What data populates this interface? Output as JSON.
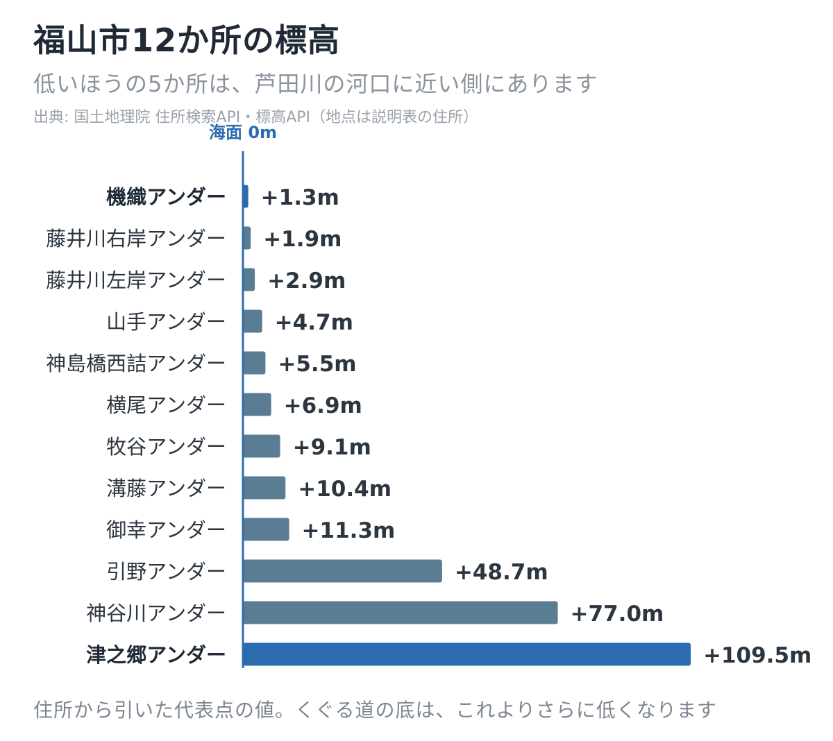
{
  "title": "福山市12か所の標高",
  "subtitle": "低いほうの5か所は、芦田川の河口に近い側にあります",
  "source": "出典: 国土地理院 住所検索API・標高API（地点は説明表の住所）",
  "footnote": "住所から引いた代表点の値。くぐる道の底は、これよりさらに低くなります",
  "colors": {
    "bar": "#5b7d93",
    "highlight": "#2b6cb0",
    "axis": "#2b6cb0"
  },
  "chart_data": {
    "type": "bar",
    "orientation": "horizontal",
    "zero_label": "海面 0m",
    "unit": "m",
    "categories": [
      "機織アンダー",
      "藤井川右岸アンダー",
      "藤井川左岸アンダー",
      "山手アンダー",
      "神島橋西詰アンダー",
      "横尾アンダー",
      "牧谷アンダー",
      "溝藤アンダー",
      "御幸アンダー",
      "引野アンダー",
      "神谷川アンダー",
      "津之郷アンダー"
    ],
    "values": [
      1.3,
      1.9,
      2.9,
      4.7,
      5.5,
      6.9,
      9.1,
      10.4,
      11.3,
      48.7,
      77.0,
      109.5
    ],
    "value_labels": [
      "+1.3m",
      "+1.9m",
      "+2.9m",
      "+4.7m",
      "+5.5m",
      "+6.9m",
      "+9.1m",
      "+10.4m",
      "+11.3m",
      "+48.7m",
      "+77.0m",
      "+109.5m"
    ],
    "highlighted": [
      "機織アンダー",
      "津之郷アンダー"
    ],
    "xlim": [
      0,
      109.5
    ],
    "grid": false
  }
}
